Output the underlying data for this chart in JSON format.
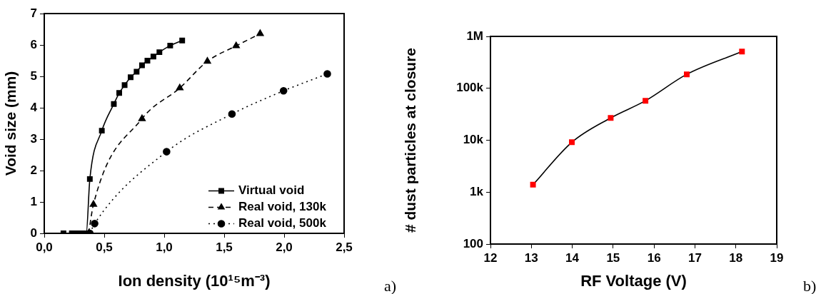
{
  "chart_data": [
    {
      "type": "line",
      "xlabel": "Ion density (10¹⁵m⁻³)",
      "ylabel": "Void size (mm)",
      "xlim": [
        0,
        2.5
      ],
      "xticks": [
        {
          "value": 0,
          "label": "0,0"
        },
        {
          "value": 0.5,
          "label": "0,5"
        },
        {
          "value": 1,
          "label": "1,0"
        },
        {
          "value": 1.5,
          "label": "1,5"
        },
        {
          "value": 2,
          "label": "2,0"
        },
        {
          "value": 2.5,
          "label": "2,5"
        }
      ],
      "ylim": [
        0,
        7
      ],
      "yticks": [
        0,
        1,
        2,
        3,
        4,
        5,
        6,
        7
      ],
      "grid": false,
      "legend": "bottom right",
      "annotations": [
        "a)"
      ],
      "series": [
        {
          "name": "Virtual void",
          "color": "#000000",
          "marker": "square",
          "line_style": "solid",
          "x": [
            0.16,
            0.23,
            0.25,
            0.27,
            0.29,
            0.31,
            0.33,
            0.35,
            0.38,
            0.48,
            0.58,
            0.625,
            0.67,
            0.72,
            0.77,
            0.815,
            0.86,
            0.91,
            0.96,
            1.05,
            1.15
          ],
          "values": [
            0,
            0,
            0,
            0,
            0,
            0,
            0,
            0,
            1.73,
            3.27,
            4.12,
            4.47,
            4.72,
            4.97,
            5.15,
            5.35,
            5.5,
            5.63,
            5.77,
            5.98,
            6.14
          ]
        },
        {
          "name": "Real void, 130k",
          "color": "#000000",
          "marker": "triangle",
          "line_style": "dashed",
          "x": [
            0.37,
            0.41,
            0.815,
            1.13,
            1.36,
            1.6,
            1.8
          ],
          "values": [
            0,
            0.92,
            3.65,
            4.63,
            5.48,
            5.97,
            6.36
          ]
        },
        {
          "name": "Real void, 500k",
          "color": "#000000",
          "marker": "circle",
          "line_style": "dotted",
          "x": [
            0.38,
            0.42,
            1.02,
            1.565,
            1.995,
            2.36
          ],
          "values": [
            0,
            0.31,
            2.6,
            3.8,
            4.54,
            5.08
          ]
        }
      ]
    },
    {
      "type": "line",
      "xlabel": "RF Voltage (V)",
      "ylabel": "# dust particles at closure",
      "xlim": [
        12,
        19
      ],
      "xticks": [
        12,
        13,
        14,
        15,
        16,
        17,
        18,
        19
      ],
      "log": "y",
      "ylim": [
        100,
        1000000
      ],
      "yticks": [
        100,
        {
          "value": 1000,
          "label": "1k"
        },
        {
          "value": 10000,
          "label": "10k"
        },
        {
          "value": 100000,
          "label": "100k"
        },
        {
          "value": 1000000,
          "label": "1M"
        }
      ],
      "grid": false,
      "legend": false,
      "annotations": [
        "b)"
      ],
      "series": [
        {
          "color": "#ff0000",
          "marker": "square",
          "line_style": "solid",
          "x": [
            13.04,
            13.99,
            14.94,
            15.79,
            16.8,
            18.15
          ],
          "values": [
            1390,
            9150,
            26900,
            57600,
            186000,
            510000
          ]
        }
      ]
    }
  ]
}
